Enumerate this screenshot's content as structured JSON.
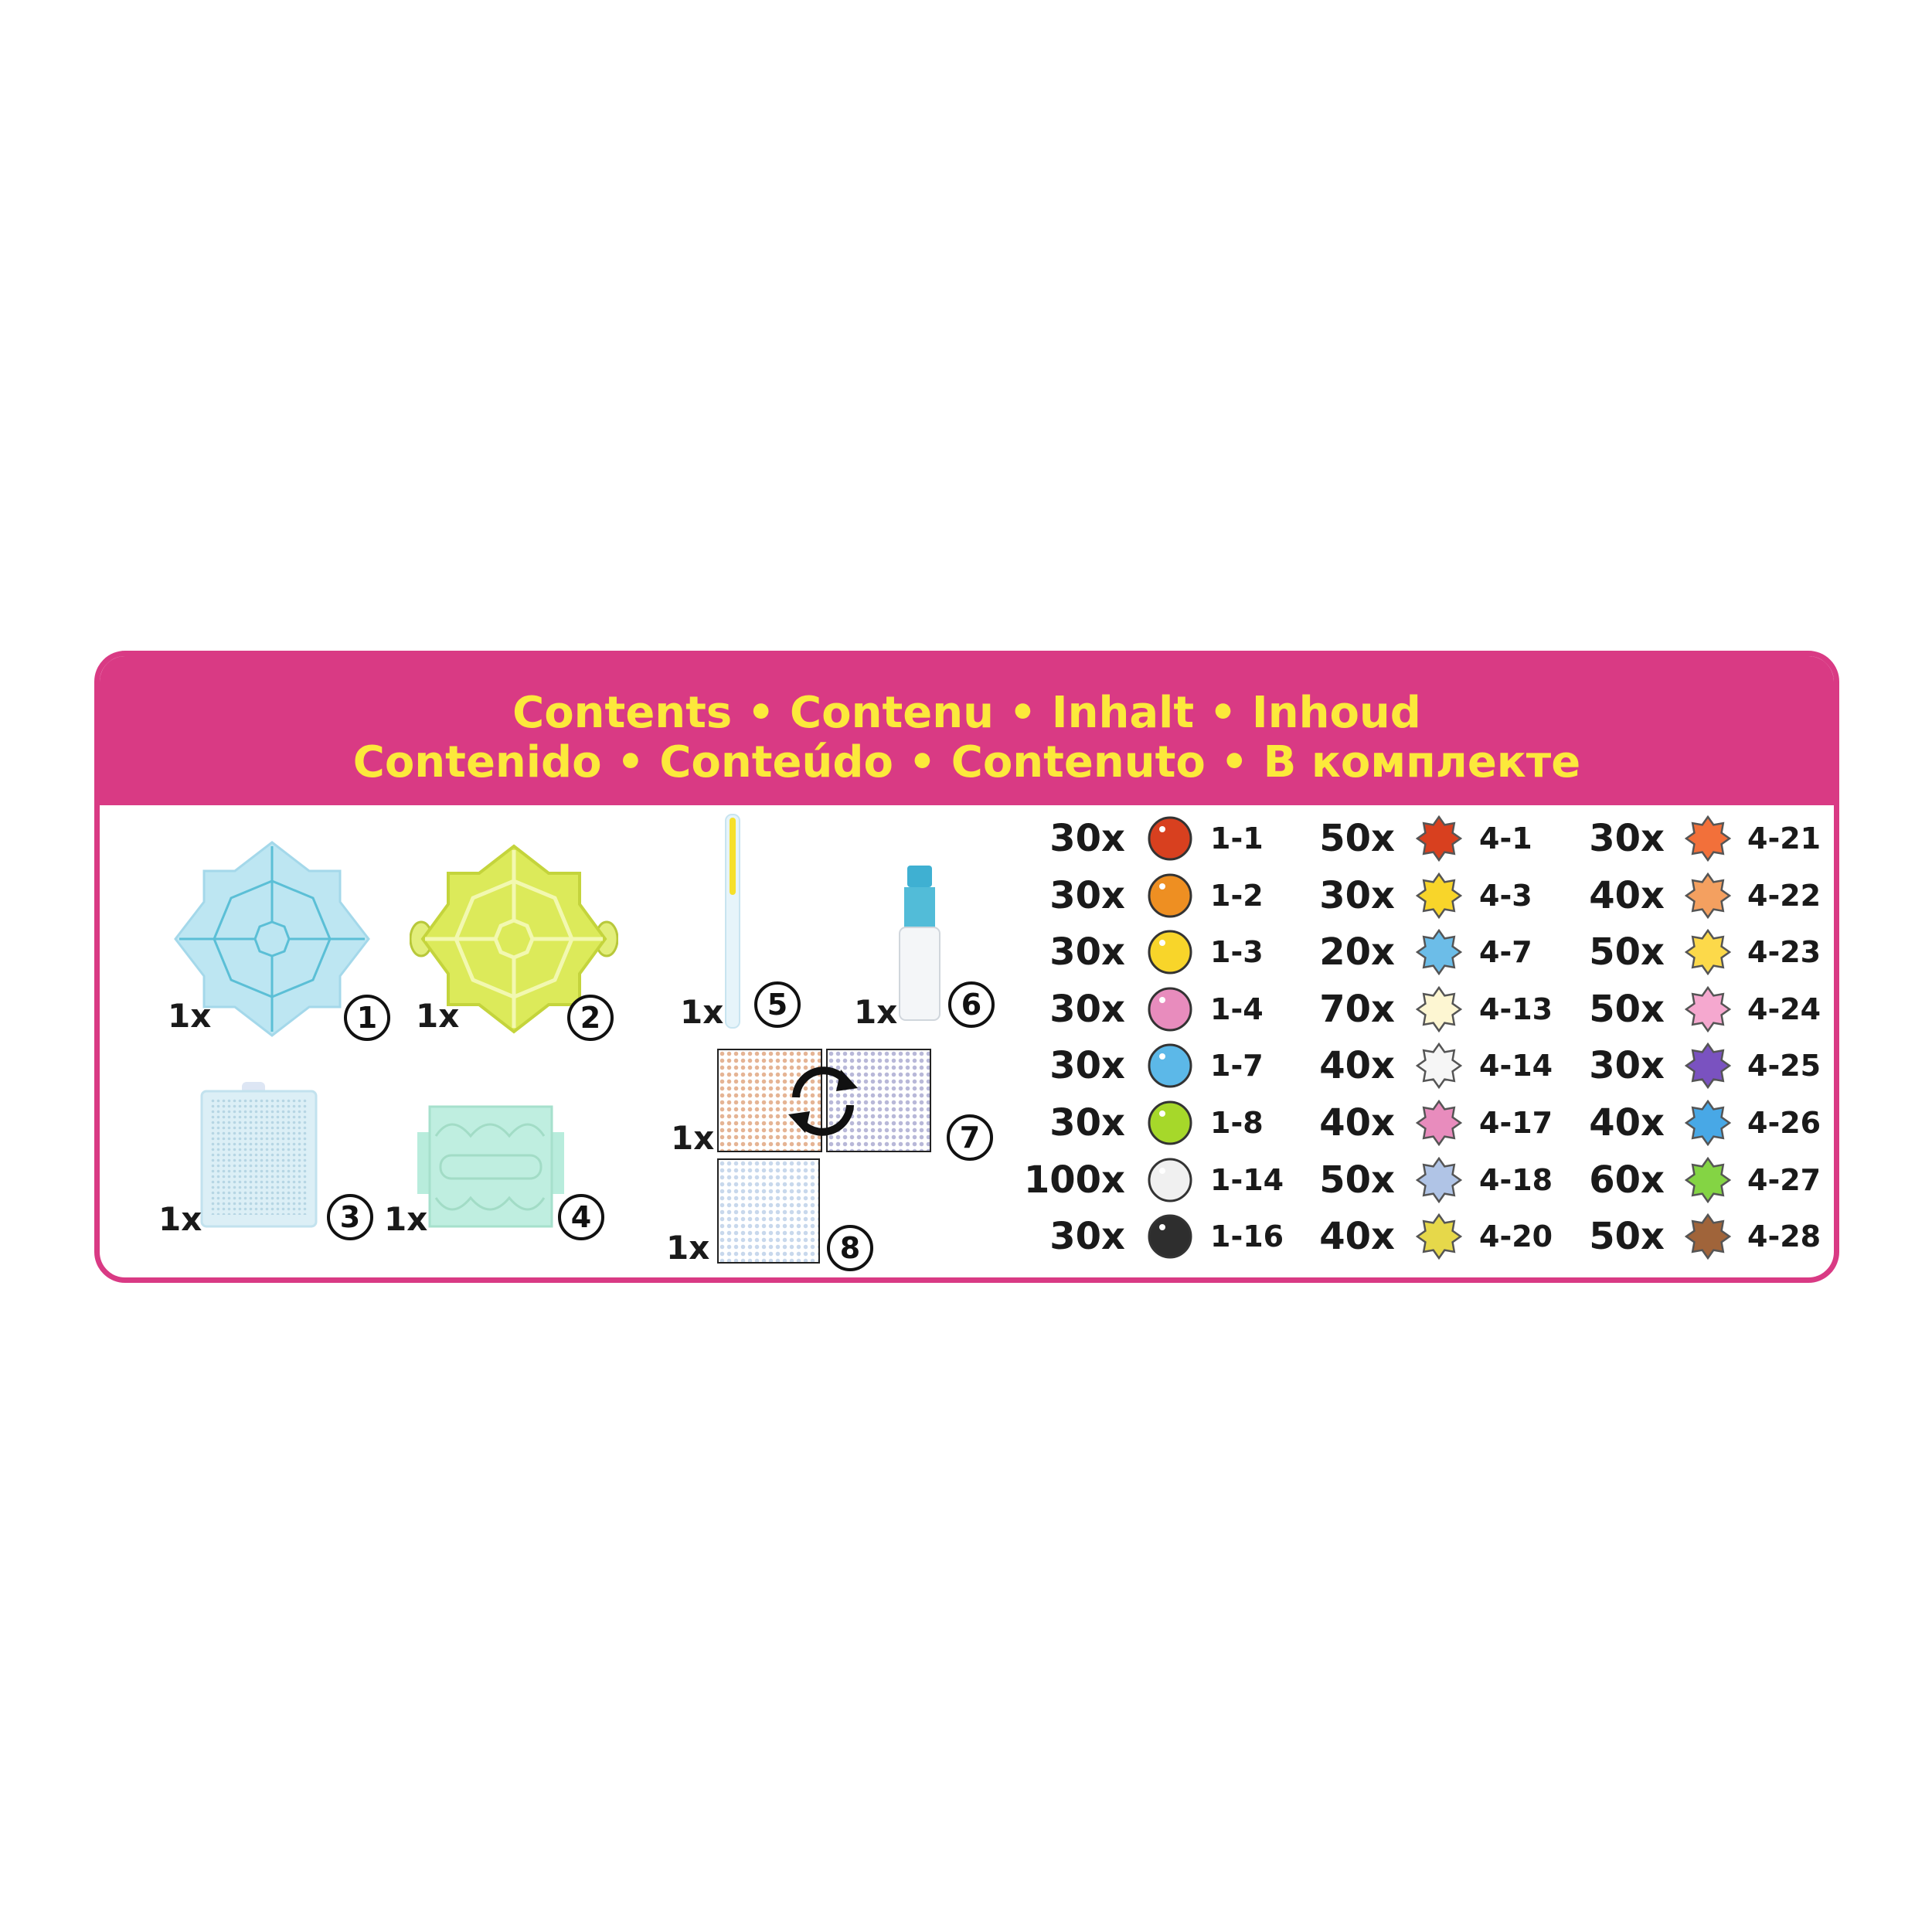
{
  "header": {
    "line1": "Contents • Contenu • Inhalt • Inhoud",
    "line2": "Contenido • Conteúdo • Contenuto • В комплекте"
  },
  "colors": {
    "brand_pink": "#d93a84",
    "title_yellow": "#fce93b"
  },
  "items": [
    {
      "qty": "1x",
      "num": "1",
      "icon": "blue-star-tray"
    },
    {
      "qty": "1x",
      "num": "2",
      "icon": "green-star-tray"
    },
    {
      "qty": "1x",
      "num": "3",
      "icon": "pegboard"
    },
    {
      "qty": "1x",
      "num": "4",
      "icon": "mint-tray"
    },
    {
      "qty": "1x",
      "num": "5",
      "icon": "bead-pen"
    },
    {
      "qty": "1x",
      "num": "6",
      "icon": "spray-bottle"
    },
    {
      "qty": "1x",
      "num": "7",
      "icon": "double-sided-template-sheet"
    },
    {
      "qty": "1x",
      "num": "8",
      "icon": "template-sheet"
    }
  ],
  "beads": {
    "col1": [
      {
        "qty": "30x",
        "code": "1-1",
        "color": "#d8401f"
      },
      {
        "qty": "30x",
        "code": "1-2",
        "color": "#ee8f22"
      },
      {
        "qty": "30x",
        "code": "1-3",
        "color": "#f8d52a"
      },
      {
        "qty": "30x",
        "code": "1-4",
        "color": "#e88cbd"
      },
      {
        "qty": "30x",
        "code": "1-7",
        "color": "#5cb8e8"
      },
      {
        "qty": "30x",
        "code": "1-8",
        "color": "#a6d82a"
      },
      {
        "qty": "100x",
        "code": "1-14",
        "color": "#f0f0f0"
      },
      {
        "qty": "30x",
        "code": "1-16",
        "color": "#2e2e2e"
      }
    ],
    "col2": [
      {
        "qty": "50x",
        "code": "4-1",
        "color": "#d8401f"
      },
      {
        "qty": "30x",
        "code": "4-3",
        "color": "#f8d52a"
      },
      {
        "qty": "20x",
        "code": "4-7",
        "color": "#6cbde8"
      },
      {
        "qty": "70x",
        "code": "4-13",
        "color": "#fdf6d2"
      },
      {
        "qty": "40x",
        "code": "4-14",
        "color": "#f6f6f6"
      },
      {
        "qty": "40x",
        "code": "4-17",
        "color": "#e88cbd"
      },
      {
        "qty": "50x",
        "code": "4-18",
        "color": "#b0c4e6"
      },
      {
        "qty": "40x",
        "code": "4-20",
        "color": "#e6d84a"
      }
    ],
    "col3": [
      {
        "qty": "30x",
        "code": "4-21",
        "color": "#f2703a"
      },
      {
        "qty": "40x",
        "code": "4-22",
        "color": "#f4a060"
      },
      {
        "qty": "50x",
        "code": "4-23",
        "color": "#fcd94a"
      },
      {
        "qty": "50x",
        "code": "4-24",
        "color": "#f5a8cf"
      },
      {
        "qty": "30x",
        "code": "4-25",
        "color": "#7a52c0"
      },
      {
        "qty": "40x",
        "code": "4-26",
        "color": "#48a8e6"
      },
      {
        "qty": "60x",
        "code": "4-27",
        "color": "#84d444"
      },
      {
        "qty": "50x",
        "code": "4-28",
        "color": "#a0643a"
      }
    ]
  }
}
